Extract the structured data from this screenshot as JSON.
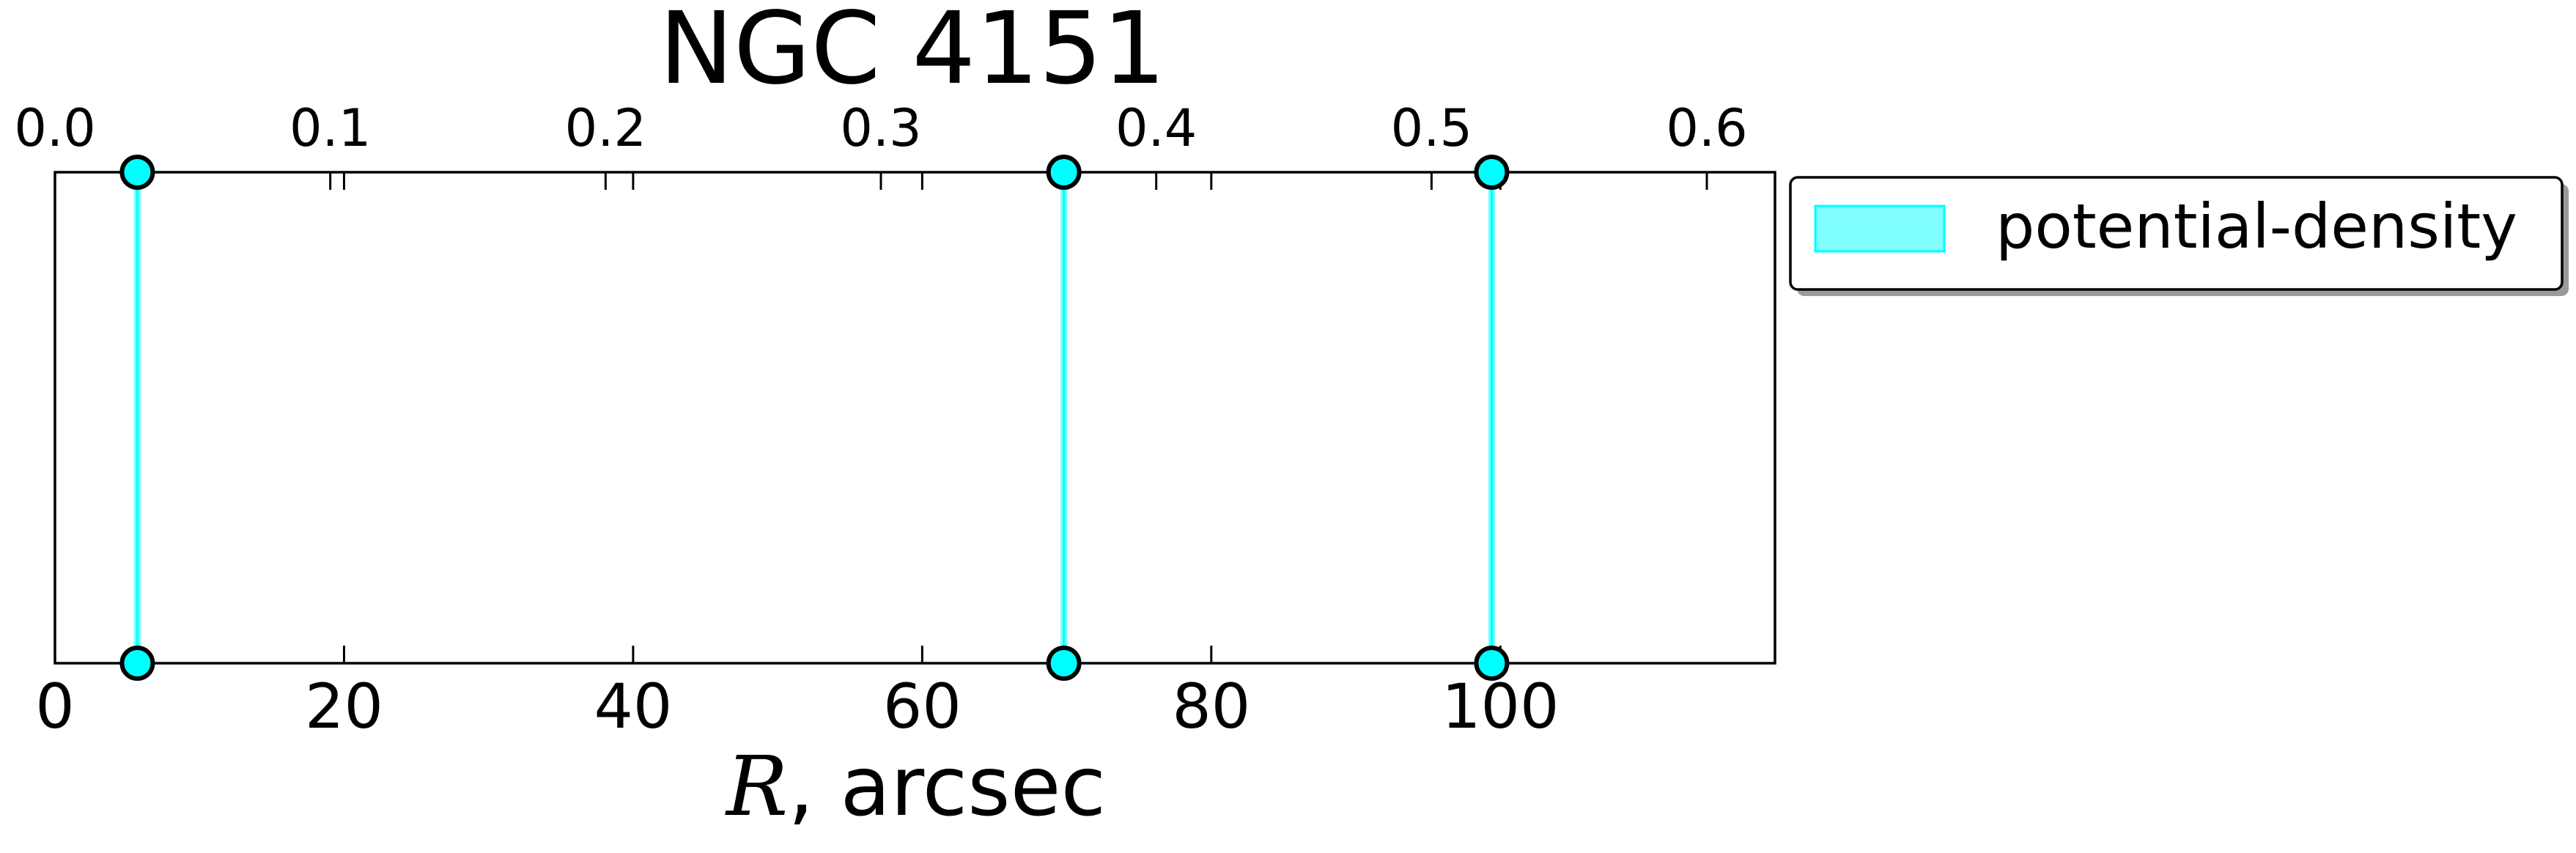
{
  "chart_data": {
    "type": "scatter",
    "title": "NGC 4151",
    "xlabel_symbol": "R",
    "xlabel_rest": ", arcsec",
    "xlim": [
      0,
      119
    ],
    "bottom_ticks": [
      0,
      20,
      40,
      60,
      80,
      100
    ],
    "bottom_tick_labels": [
      "0",
      "20",
      "40",
      "60",
      "80",
      "100"
    ],
    "top_ticks": [
      0.0,
      0.1,
      0.2,
      0.3,
      0.4,
      0.5,
      0.6
    ],
    "top_tick_labels": [
      "0.0",
      "0.1",
      "0.2",
      "0.3",
      "0.4",
      "0.5",
      "0.6"
    ],
    "top_axis_scale_per_arcsec": 0.00525,
    "series": [
      {
        "name": "potential-density",
        "x": [
          5.7,
          69.8,
          99.4
        ],
        "color": "#00ffff"
      }
    ],
    "legend": {
      "position": "outside-right-top",
      "entries": [
        "potential-density"
      ]
    },
    "grid": false
  }
}
